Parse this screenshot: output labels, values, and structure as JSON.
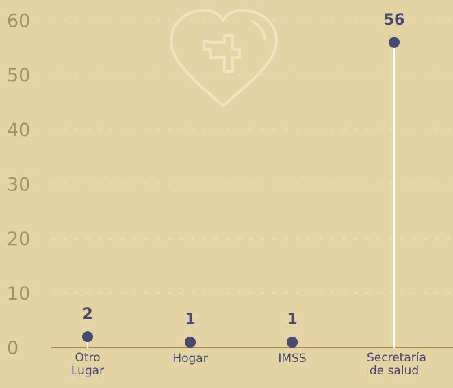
{
  "chart_data": {
    "type": "lollipop",
    "categories": [
      "Otro Lugar",
      "Hogar",
      "IMSS",
      "Secretaría de salud"
    ],
    "values": [
      2,
      1,
      1,
      56
    ],
    "color": "#474a6e",
    "ylim": [
      0,
      60
    ],
    "yticks": [
      0,
      10,
      20,
      30,
      40,
      50,
      60
    ],
    "grid": true
  }
}
